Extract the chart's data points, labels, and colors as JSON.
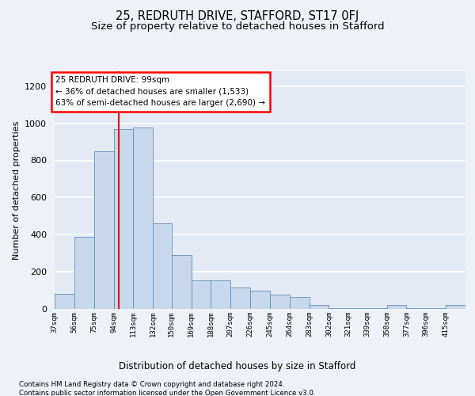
{
  "title": "25, REDRUTH DRIVE, STAFFORD, ST17 0FJ",
  "subtitle": "Size of property relative to detached houses in Stafford",
  "xlabel": "Distribution of detached houses by size in Stafford",
  "ylabel": "Number of detached properties",
  "footer1": "Contains HM Land Registry data © Crown copyright and database right 2024.",
  "footer2": "Contains public sector information licensed under the Open Government Licence v3.0.",
  "annotation_line1": "25 REDRUTH DRIVE: 99sqm",
  "annotation_line2": "← 36% of detached houses are smaller (1,533)",
  "annotation_line3": "63% of semi-detached houses are larger (2,690) →",
  "bar_color": "#c8d8ec",
  "bar_edge_color": "#6090bb",
  "red_line_x": 99,
  "categories": [
    "37sqm",
    "56sqm",
    "75sqm",
    "94sqm",
    "113sqm",
    "132sqm",
    "150sqm",
    "169sqm",
    "188sqm",
    "207sqm",
    "226sqm",
    "245sqm",
    "264sqm",
    "283sqm",
    "302sqm",
    "321sqm",
    "339sqm",
    "358sqm",
    "377sqm",
    "396sqm",
    "415sqm"
  ],
  "bin_edges": [
    37,
    56,
    75,
    94,
    113,
    132,
    150,
    169,
    188,
    207,
    226,
    245,
    264,
    283,
    302,
    321,
    339,
    358,
    377,
    396,
    415,
    434
  ],
  "values": [
    80,
    390,
    850,
    970,
    975,
    460,
    290,
    155,
    155,
    115,
    100,
    75,
    65,
    20,
    5,
    5,
    5,
    20,
    5,
    5,
    20
  ],
  "ylim": [
    0,
    1280
  ],
  "yticks": [
    0,
    200,
    400,
    600,
    800,
    1000,
    1200
  ],
  "background_color": "#eef2f8",
  "plot_background": "#e4eaf4",
  "grid_color": "#ffffff",
  "title_fontsize": 10.5,
  "subtitle_fontsize": 9.5
}
